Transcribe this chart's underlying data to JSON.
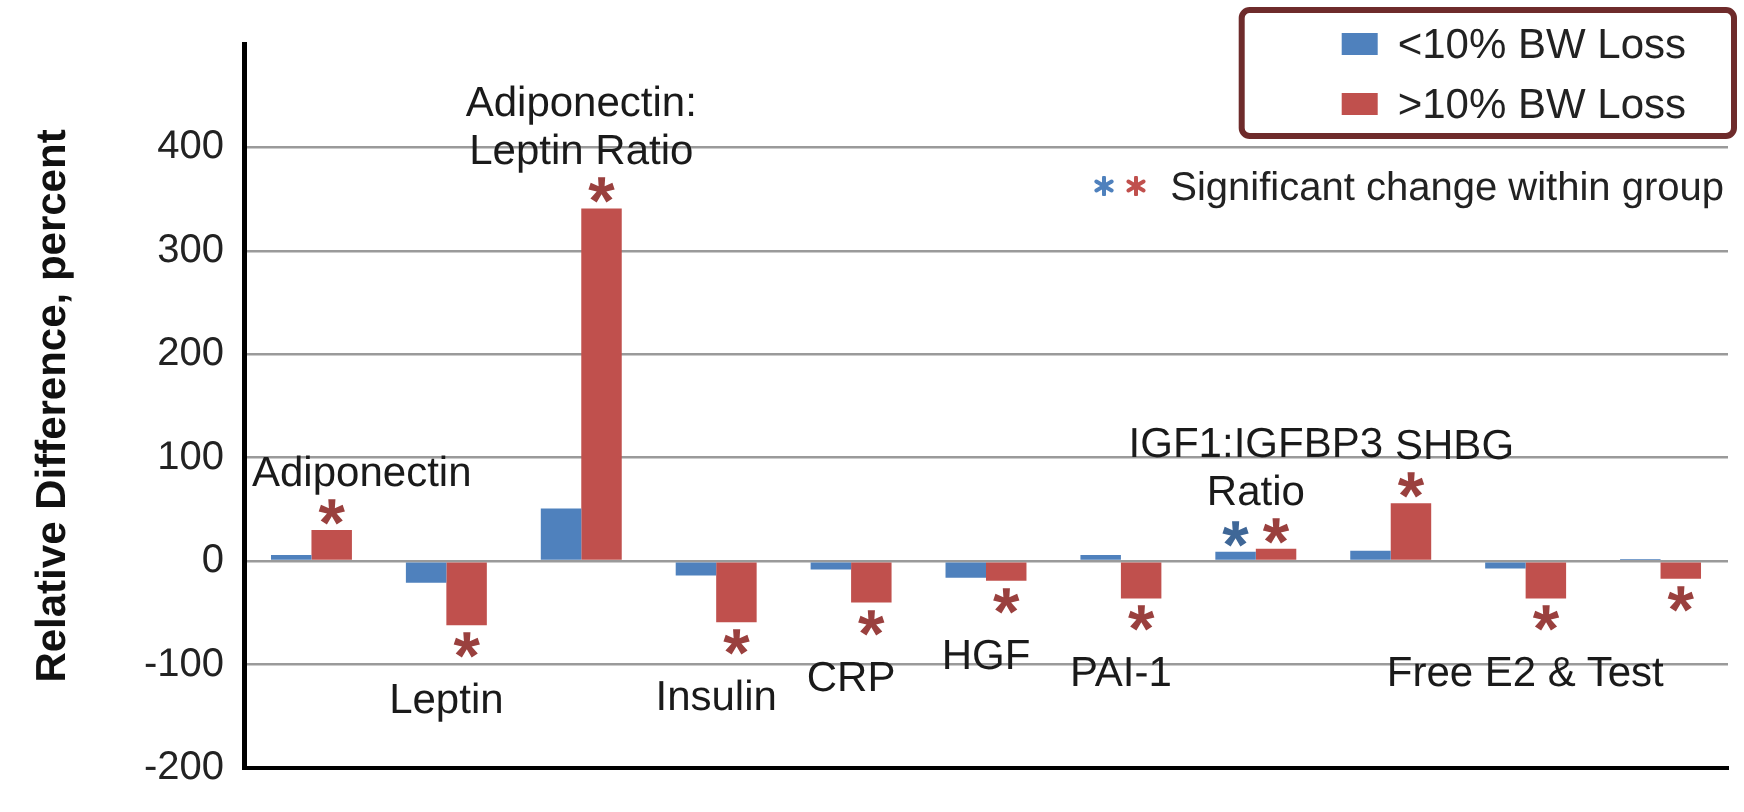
{
  "chart_data": {
    "type": "bar",
    "ylabel": "Relative Difference, percent",
    "categories": [
      "Adiponectin",
      "Leptin",
      "Adiponectin:\nLeptin Ratio",
      "Insulin",
      "CRP",
      "HGF",
      "PAI-1",
      "IGF1:IGFBP3\nRatio",
      "SHBG",
      "Free E2 & Test",
      null
    ],
    "series": [
      {
        "name": "<10% BW Loss",
        "color": "#4f81bd",
        "values": [
          6,
          -21,
          51,
          -14,
          -8,
          -16,
          6,
          9,
          10,
          -7,
          2
        ],
        "value_labels": [
          null,
          null,
          null,
          null,
          null,
          null,
          null,
          "*",
          null,
          null,
          null
        ]
      },
      {
        "name": ">10% BW Loss",
        "color": "#c0504d",
        "values": [
          30,
          -62,
          341,
          -59,
          -40,
          -19,
          -36,
          12,
          56,
          -36,
          -17
        ],
        "value_labels": [
          "*",
          "*",
          "*",
          "*",
          "*",
          "*",
          "*",
          "*",
          "*",
          "*",
          "*"
        ]
      }
    ],
    "ylim": [
      -200,
      500
    ],
    "yticks": [
      -200,
      -100,
      0,
      100,
      200,
      300,
      400
    ],
    "grid": "y",
    "legend": "top right",
    "annotations": [
      "Significant change within group"
    ]
  }
}
